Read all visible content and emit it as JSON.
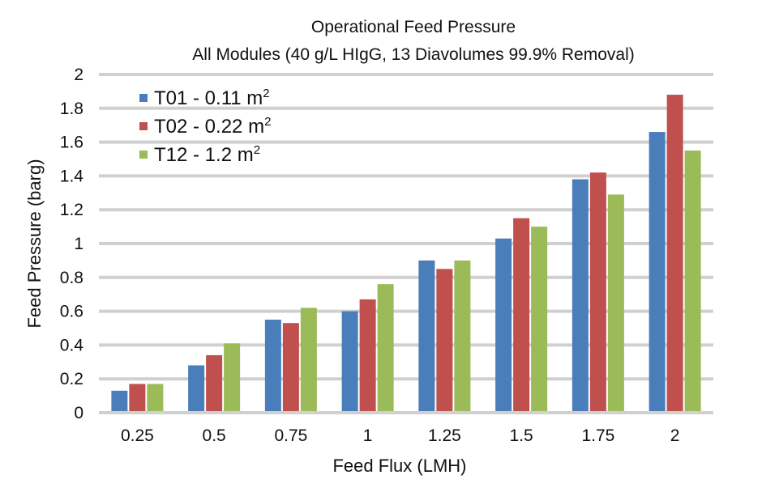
{
  "chart_data": {
    "type": "bar",
    "title": "Operational Feed Pressure",
    "subtitle": "All Modules (40 g/L HIgG, 13 Diavolumes 99.9% Removal)",
    "xlabel": "Feed Flux (LMH)",
    "ylabel": "Feed Pressure (barg)",
    "categories": [
      "0.25",
      "0.5",
      "0.75",
      "1",
      "1.25",
      "1.5",
      "1.75",
      "2"
    ],
    "ylim": [
      0,
      2
    ],
    "yticks": [
      "0",
      "0.2",
      "0.4",
      "0.6",
      "0.8",
      "1",
      "1.2",
      "1.4",
      "1.6",
      "1.8",
      "2"
    ],
    "grid": true,
    "legend_position": "top-left",
    "series": [
      {
        "name": "T01 - 0.11 m",
        "sup": "2",
        "color": "#4a7ebb",
        "values": [
          0.13,
          0.28,
          0.55,
          0.6,
          0.9,
          1.03,
          1.38,
          1.66
        ]
      },
      {
        "name": "T02 - 0.22 m",
        "sup": "2",
        "color": "#c0504d",
        "values": [
          0.17,
          0.34,
          0.53,
          0.67,
          0.85,
          1.15,
          1.42,
          1.88
        ]
      },
      {
        "name": "T12 - 1.2 m",
        "sup": "2",
        "color": "#9bbb59",
        "values": [
          0.17,
          0.41,
          0.62,
          0.76,
          0.9,
          1.1,
          1.29,
          1.55
        ]
      }
    ]
  }
}
